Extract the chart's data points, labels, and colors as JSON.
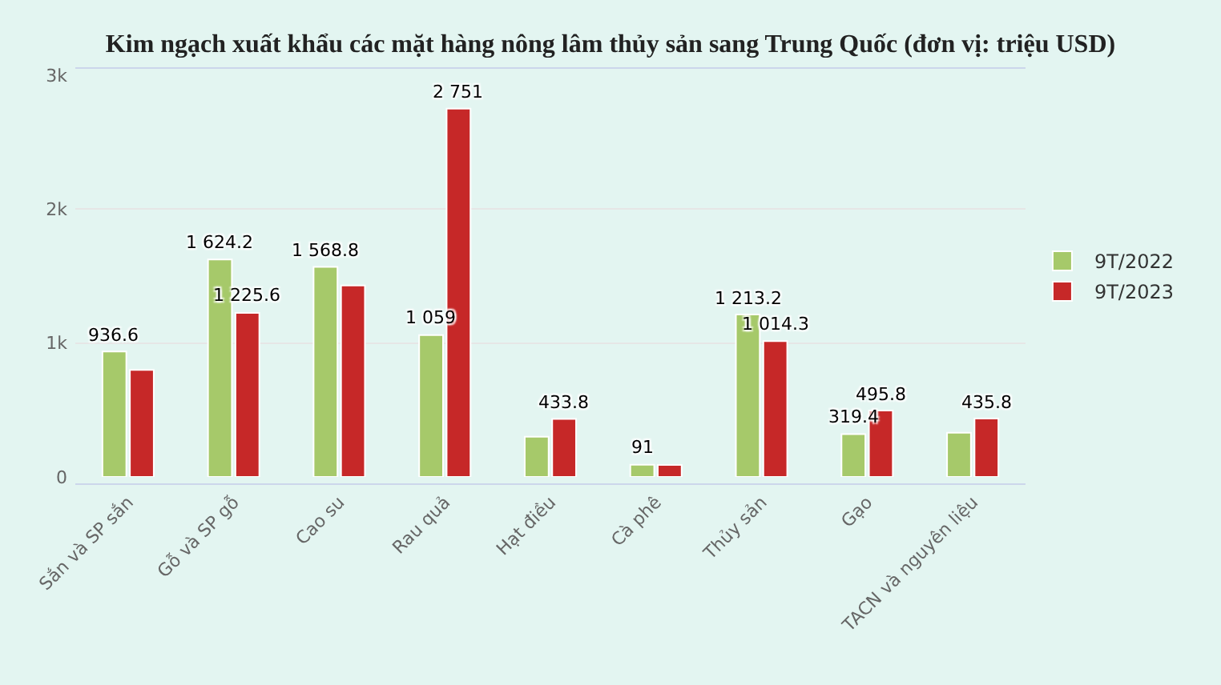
{
  "chart_data": {
    "type": "bar",
    "title": "Kim ngạch xuất khẩu các mặt hàng nông lâm thủy sản sang Trung Quốc (đơn vị: triệu USD)",
    "categories": [
      "Sắn và SP sắn",
      "Gỗ và SP gỗ",
      "Cao su",
      "Rau quả",
      "Hạt điều",
      "Cà phê",
      "Thủy sản",
      "Gạo",
      "TACN và nguyên liệu"
    ],
    "series": [
      {
        "name": "9T/2022",
        "color": "#a6c96a",
        "values": [
          936.6,
          1624.2,
          1568.8,
          1059,
          300,
          91,
          1213.2,
          319.4,
          330
        ],
        "value_labels": [
          "936.6",
          "1 624.2",
          "1 568.8",
          "1 059",
          null,
          "91",
          "1 213.2",
          "319.4",
          null
        ]
      },
      {
        "name": "9T/2023",
        "color": "#c62828",
        "values": [
          800,
          1225.6,
          1430,
          2751,
          433.8,
          90,
          1014.3,
          495.8,
          435.8
        ],
        "value_labels": [
          null,
          "1 225.6",
          null,
          "2 751",
          "433.8",
          null,
          "1 014.3",
          "495.8",
          "435.8"
        ]
      }
    ],
    "ylim": [
      0,
      3000
    ],
    "yticks": [
      0,
      {
        "value": 1000,
        "label": "1k"
      },
      {
        "value": 2000,
        "label": "2k"
      },
      {
        "value": 3000,
        "label": "3k"
      }
    ],
    "grid": "y",
    "legend": "right"
  }
}
